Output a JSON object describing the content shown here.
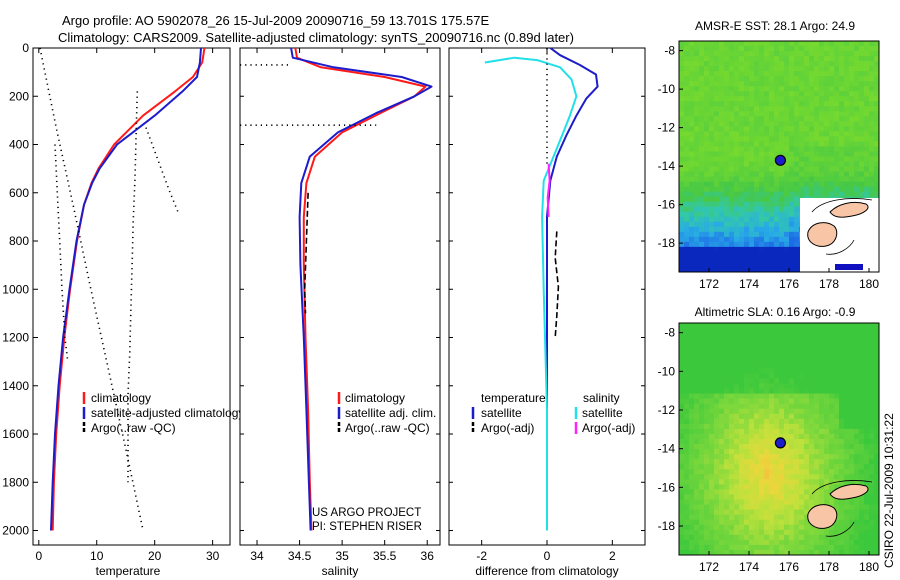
{
  "figure": {
    "title_line1": "Argo profile: AO 5902078_26 15-Jul-2009 20090716_59 13.701S 175.57E",
    "title_line2": "Climatology: CARS2009. Satellite-adjusted climatology: synTS_20090716.nc (0.89d later)",
    "credit_line1": "US ARGO PROJECT",
    "credit_line2": "PI: STEPHEN RISER",
    "side_stamp": "CSIRO 22-Jul-2009 10:31:22"
  },
  "colors": {
    "climatology": "#ff1a1a",
    "satellite": "#1c1ccc",
    "argo": "#000000",
    "cyan": "#22e0e8",
    "magenta": "#ff22ff"
  },
  "chart_data": [
    {
      "type": "line",
      "id": "temperature",
      "xlabel": "temperature",
      "xlim": [
        -1,
        33
      ],
      "ylim": [
        2060,
        0
      ],
      "xticks": [
        0,
        10,
        20,
        30
      ],
      "yticks": [
        0,
        200,
        400,
        600,
        800,
        1000,
        1200,
        1400,
        1600,
        1800,
        2000
      ],
      "series": [
        {
          "name": "climatology",
          "color": "#ff1a1a",
          "style": "solid",
          "x": [
            28.6,
            28.2,
            26.6,
            23.5,
            18.0,
            13.0,
            10.3,
            9.1,
            7.8,
            6.6,
            5.4,
            4.4,
            3.6,
            3.0,
            2.6,
            2.4
          ],
          "y": [
            0,
            60,
            120,
            180,
            280,
            400,
            500,
            560,
            650,
            800,
            1000,
            1200,
            1400,
            1600,
            1800,
            2000
          ]
        },
        {
          "name": "satellite-adjusted climatology",
          "color": "#1c1ccc",
          "style": "solid",
          "x": [
            28.0,
            27.8,
            27.3,
            24.8,
            20.0,
            13.5,
            10.5,
            9.2,
            7.8,
            6.5,
            5.3,
            4.2,
            3.4,
            2.8,
            2.4,
            2.1
          ],
          "y": [
            0,
            60,
            120,
            180,
            280,
            400,
            500,
            560,
            650,
            800,
            1000,
            1200,
            1400,
            1600,
            1800,
            2000
          ]
        },
        {
          "name": "Argo raw dotted a",
          "color": "#000000",
          "style": "dotted",
          "x": [
            0.2,
            3,
            6,
            9,
            12,
            15,
            18
          ],
          "y": [
            0,
            330,
            660,
            1000,
            1330,
            1660,
            2000
          ]
        },
        {
          "name": "Argo raw dotted b",
          "color": "#000000",
          "style": "dotted",
          "x": [
            17,
            16.8,
            16.6,
            16.3,
            16.1,
            15.9,
            15.7,
            15.4,
            15.4
          ],
          "y": [
            180,
            360,
            540,
            720,
            900,
            1080,
            1260,
            1440,
            1800
          ]
        },
        {
          "name": "Argo raw dotted c",
          "color": "#000000",
          "style": "dotted",
          "x": [
            18.5,
            20.5,
            22.5,
            24.2
          ],
          "y": [
            330,
            460,
            590,
            690
          ]
        },
        {
          "name": "Argo raw dotted d",
          "color": "#000000",
          "style": "dotted",
          "x": [
            2.8,
            3.2,
            3.6,
            4.0,
            4.5,
            5.0
          ],
          "y": [
            400,
            600,
            800,
            1000,
            1200,
            1300
          ]
        }
      ],
      "legend": [
        "climatology",
        "satellite-adjusted climatology",
        "Argo(..raw -QC)"
      ]
    },
    {
      "type": "line",
      "id": "salinity",
      "xlabel": "salinity",
      "xlim": [
        33.8,
        36.15
      ],
      "ylim": [
        2060,
        0
      ],
      "xticks": [
        34,
        34.5,
        35,
        35.5,
        36
      ],
      "series": [
        {
          "name": "climatology",
          "color": "#ff1a1a",
          "style": "solid",
          "x": [
            34.45,
            34.47,
            34.75,
            35.5,
            35.98,
            35.85,
            35.45,
            35.0,
            34.68,
            34.58,
            34.55,
            34.55,
            34.57,
            34.6,
            34.62,
            34.64
          ],
          "y": [
            0,
            40,
            80,
            120,
            160,
            200,
            270,
            350,
            450,
            560,
            700,
            900,
            1200,
            1500,
            1800,
            2000
          ]
        },
        {
          "name": "satellite adj. clim.",
          "color": "#1c1ccc",
          "style": "solid",
          "x": [
            34.4,
            34.42,
            34.9,
            35.7,
            36.05,
            35.85,
            35.4,
            34.95,
            34.62,
            34.52,
            34.5,
            34.51,
            34.55,
            34.58,
            34.61,
            34.63
          ],
          "y": [
            0,
            40,
            80,
            120,
            160,
            200,
            270,
            350,
            450,
            560,
            700,
            900,
            1200,
            1500,
            1800,
            2000
          ]
        },
        {
          "name": "Argo raw dotted a",
          "color": "#000000",
          "style": "dotted",
          "x": [
            33.8,
            34.4
          ],
          "y": [
            70,
            70
          ]
        },
        {
          "name": "Argo raw dotted b",
          "color": "#000000",
          "style": "dotted",
          "x": [
            33.8,
            35.4
          ],
          "y": [
            320,
            320
          ]
        },
        {
          "name": "Argo dashed",
          "color": "#000000",
          "style": "dashed",
          "x": [
            34.6,
            34.58,
            34.56,
            34.57
          ],
          "y": [
            600,
            800,
            1000,
            1100
          ]
        }
      ],
      "legend": [
        "climatology",
        "satellite adj. clim.",
        "Argo(..raw -QC)"
      ]
    },
    {
      "type": "line",
      "id": "difference",
      "xlabel": "difference from climatology",
      "xlim": [
        -3,
        3
      ],
      "ylim": [
        2060,
        0
      ],
      "xticks": [
        -2,
        0,
        2
      ],
      "series": [
        {
          "name": "temperature satellite",
          "color": "#1c1ccc",
          "style": "solid",
          "x": [
            0.1,
            0.4,
            1.0,
            1.5,
            1.55,
            1.2,
            0.9,
            0.6,
            0.3,
            0.1,
            0.0,
            0.0,
            0.0,
            0.0
          ],
          "y": [
            0,
            30,
            70,
            110,
            160,
            210,
            280,
            360,
            450,
            550,
            700,
            1000,
            1500,
            2000
          ]
        },
        {
          "name": "salinity satellite",
          "color": "#22e0e8",
          "style": "solid",
          "x": [
            -1.9,
            -1.0,
            -0.3,
            0.4,
            0.75,
            0.9,
            0.7,
            0.5,
            0.2,
            -0.1,
            -0.15,
            -0.1,
            0.0,
            0.0
          ],
          "y": [
            60,
            40,
            50,
            80,
            130,
            200,
            280,
            350,
            450,
            550,
            700,
            1000,
            1500,
            2000
          ]
        },
        {
          "name": "temperature Argo",
          "color": "#000000",
          "style": "dashed",
          "x": [
            0.3,
            0.25,
            0.35,
            0.3,
            0.25
          ],
          "y": [
            760,
            870,
            990,
            1110,
            1200
          ]
        },
        {
          "name": "salinity Argo",
          "color": "#ff22ff",
          "style": "solid",
          "x": [
            0.05,
            0.08,
            0.02,
            0.05
          ],
          "y": [
            480,
            550,
            620,
            700
          ]
        },
        {
          "name": "zero line",
          "color": "#000000",
          "style": "dotted",
          "x": [
            0,
            0
          ],
          "y": [
            0,
            480
          ]
        }
      ],
      "legend": {
        "temperature_title": "temperature",
        "salinity_title": "salinity",
        "items": [
          "satellite",
          "Argo(-adj)",
          "satellite",
          "Argo(-adj)"
        ]
      }
    },
    {
      "type": "heatmap",
      "id": "sst-map",
      "title": "AMSR-E SST: 28.1  Argo: 24.9",
      "xlim": [
        170.5,
        180.5
      ],
      "ylim": [
        -19.5,
        -7.5
      ],
      "xticks": [
        172,
        174,
        176,
        178,
        180
      ],
      "yticks": [
        -8,
        -10,
        -12,
        -14,
        -16,
        -18
      ],
      "argo_position": {
        "lon": 175.57,
        "lat": -13.7
      }
    },
    {
      "type": "heatmap",
      "id": "sla-map",
      "title": "Altimetric SLA: 0.16  Argo: -0.9",
      "xlim": [
        170.5,
        180.5
      ],
      "ylim": [
        -19.5,
        -7.5
      ],
      "xticks": [
        172,
        174,
        176,
        178,
        180
      ],
      "yticks": [
        -8,
        -10,
        -12,
        -14,
        -16,
        -18
      ],
      "argo_position": {
        "lon": 175.57,
        "lat": -13.7
      }
    }
  ]
}
